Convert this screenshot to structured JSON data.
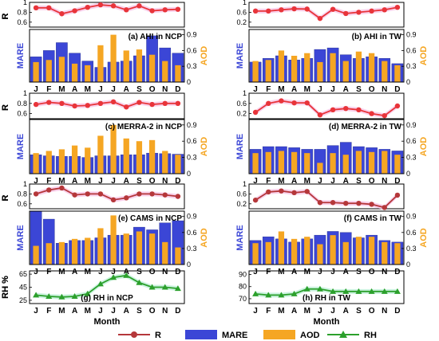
{
  "colors": {
    "r_ncp_tw_top": "#e8343a",
    "r_cams": "#b5373a",
    "rh": "#2ca02c",
    "mare": "#3b46d6",
    "aod": "#f5a623",
    "r_band": "#f7c6e6",
    "rh_band": "#bff0d8"
  },
  "legend": {
    "r": "R",
    "mare": "MARE",
    "aod": "AOD",
    "rh": "RH"
  },
  "chart_data": [
    {
      "type": "line",
      "panel": "AHI NCP R",
      "ylabel": "R",
      "categories": [
        "J",
        "F",
        "M",
        "A",
        "M",
        "J",
        "J",
        "A",
        "S",
        "O",
        "N",
        "D"
      ],
      "yticks": [
        "1",
        "0.8",
        "0.6"
      ],
      "ylim": [
        0.5,
        1.0
      ],
      "series": [
        {
          "name": "R",
          "values": [
            0.89,
            0.89,
            0.77,
            0.83,
            0.9,
            0.95,
            0.93,
            0.85,
            0.93,
            0.83,
            0.85,
            0.86
          ]
        }
      ]
    },
    {
      "type": "bar",
      "panel": "AHI NCP",
      "label": "(a) AHI in NCP",
      "ylabel": "MARE",
      "y2label": "AOD",
      "categories": [
        "J",
        "F",
        "M",
        "A",
        "M",
        "J",
        "J",
        "A",
        "S",
        "O",
        "N",
        "D"
      ],
      "yticks": [
        "0.9",
        "0.6",
        "0.3",
        "0"
      ],
      "ylim": [
        0,
        1.0
      ],
      "series": [
        {
          "name": "MARE",
          "values": [
            0.48,
            0.6,
            0.75,
            0.55,
            0.4,
            0.28,
            0.38,
            0.4,
            0.5,
            0.88,
            0.65,
            0.55
          ]
        },
        {
          "name": "AOD",
          "values": [
            0.38,
            0.42,
            0.48,
            0.35,
            0.32,
            0.7,
            0.9,
            0.6,
            0.62,
            0.52,
            0.4,
            0.32
          ]
        }
      ]
    },
    {
      "type": "line",
      "panel": "AHI TW R",
      "ylabel": "R",
      "categories": [
        "J",
        "F",
        "M",
        "A",
        "M",
        "J",
        "J",
        "A",
        "S",
        "O",
        "N",
        "D"
      ],
      "yticks": [
        "1",
        "0.6",
        "0.2"
      ],
      "ylim": [
        0.0,
        1.0
      ],
      "series": [
        {
          "name": "R",
          "values": [
            0.65,
            0.65,
            0.7,
            0.74,
            0.73,
            0.35,
            0.72,
            0.55,
            0.6,
            0.65,
            0.7,
            0.8
          ]
        }
      ]
    },
    {
      "type": "bar",
      "panel": "AHI TW",
      "label": "(b) AHI in TW",
      "ylabel": "MARE",
      "y2label": "AOD",
      "categories": [
        "J",
        "F",
        "M",
        "A",
        "M",
        "J",
        "J",
        "A",
        "S",
        "O",
        "N",
        "D"
      ],
      "yticks": [
        "0.9",
        "0.6",
        "0.3",
        "0"
      ],
      "ylim": [
        0,
        1.0
      ],
      "series": [
        {
          "name": "MARE",
          "values": [
            0.38,
            0.45,
            0.5,
            0.42,
            0.45,
            0.62,
            0.65,
            0.52,
            0.45,
            0.48,
            0.45,
            0.35
          ]
        },
        {
          "name": "AOD",
          "values": [
            0.4,
            0.42,
            0.6,
            0.5,
            0.55,
            0.38,
            0.55,
            0.4,
            0.58,
            0.55,
            0.4,
            0.32
          ]
        }
      ]
    },
    {
      "type": "line",
      "panel": "MERRA-2 NCP R",
      "ylabel": "R",
      "categories": [
        "J",
        "F",
        "M",
        "A",
        "M",
        "J",
        "J",
        "A",
        "S",
        "O",
        "N",
        "D"
      ],
      "yticks": [
        "1",
        "0.8",
        "0.6"
      ],
      "ylim": [
        0.5,
        1.0
      ],
      "series": [
        {
          "name": "R",
          "values": [
            0.78,
            0.82,
            0.8,
            0.75,
            0.76,
            0.8,
            0.83,
            0.73,
            0.82,
            0.78,
            0.8,
            0.8
          ]
        }
      ]
    },
    {
      "type": "bar",
      "panel": "MERRA-2 NCP",
      "label": "(c) MERRA-2 in NCP",
      "ylabel": "MARE",
      "y2label": "AOD",
      "categories": [
        "J",
        "F",
        "M",
        "A",
        "M",
        "J",
        "J",
        "A",
        "S",
        "O",
        "N",
        "D"
      ],
      "yticks": [
        "0.9",
        "0.6",
        "0.3",
        "0"
      ],
      "ylim": [
        0,
        1.0
      ],
      "series": [
        {
          "name": "MARE",
          "values": [
            0.35,
            0.33,
            0.32,
            0.32,
            0.3,
            0.33,
            0.33,
            0.35,
            0.35,
            0.38,
            0.37,
            0.36
          ]
        },
        {
          "name": "AOD",
          "values": [
            0.38,
            0.42,
            0.45,
            0.52,
            0.48,
            0.7,
            0.9,
            0.65,
            0.6,
            0.62,
            0.42,
            0.35
          ]
        }
      ]
    },
    {
      "type": "line",
      "panel": "MERRA-2 TW R",
      "ylabel": "R",
      "categories": [
        "J",
        "F",
        "M",
        "A",
        "M",
        "J",
        "J",
        "A",
        "S",
        "O",
        "N",
        "D"
      ],
      "yticks": [
        "1",
        "0.6",
        "0.2"
      ],
      "ylim": [
        0.0,
        1.0
      ],
      "series": [
        {
          "name": "R",
          "values": [
            0.25,
            0.6,
            0.7,
            0.62,
            0.62,
            0.15,
            0.35,
            0.4,
            0.35,
            0.2,
            0.12,
            0.5
          ]
        }
      ]
    },
    {
      "type": "bar",
      "panel": "MERRA-2 TW",
      "label": "(d) MERRA-2 in TW",
      "ylabel": "MARE",
      "y2label": "AOD",
      "categories": [
        "J",
        "F",
        "M",
        "A",
        "M",
        "J",
        "J",
        "A",
        "S",
        "O",
        "N",
        "D"
      ],
      "yticks": [
        "0.9",
        "0.6",
        "0.3",
        "0"
      ],
      "ylim": [
        0,
        1.0
      ],
      "series": [
        {
          "name": "MARE",
          "values": [
            0.45,
            0.5,
            0.5,
            0.48,
            0.45,
            0.45,
            0.52,
            0.58,
            0.5,
            0.48,
            0.45,
            0.42
          ]
        },
        {
          "name": "AOD",
          "values": [
            0.38,
            0.4,
            0.42,
            0.4,
            0.38,
            0.2,
            0.38,
            0.35,
            0.42,
            0.4,
            0.42,
            0.35
          ]
        }
      ]
    },
    {
      "type": "line",
      "panel": "CAMS NCP R",
      "ylabel": "R",
      "categories": [
        "J",
        "F",
        "M",
        "A",
        "M",
        "J",
        "J",
        "A",
        "S",
        "O",
        "N",
        "D"
      ],
      "yticks": [
        "1",
        "0.8",
        "0.6"
      ],
      "ylim": [
        0.5,
        1.0
      ],
      "series": [
        {
          "name": "R",
          "values": [
            0.8,
            0.88,
            0.92,
            0.78,
            0.8,
            0.8,
            0.68,
            0.72,
            0.8,
            0.8,
            0.78,
            0.75
          ]
        }
      ]
    },
    {
      "type": "bar",
      "panel": "CAMS NCP",
      "label": "(e) CAMS in NCP",
      "ylabel": "MARE",
      "y2label": "AOD",
      "categories": [
        "J",
        "F",
        "M",
        "A",
        "M",
        "J",
        "J",
        "A",
        "S",
        "O",
        "N",
        "D"
      ],
      "yticks": [
        "0.9",
        "0.6",
        "0.3",
        "0"
      ],
      "ylim": [
        0,
        1.0
      ],
      "series": [
        {
          "name": "MARE",
          "values": [
            1.0,
            0.85,
            0.4,
            0.45,
            0.45,
            0.5,
            0.55,
            0.55,
            0.7,
            0.65,
            0.78,
            0.82
          ]
        },
        {
          "name": "AOD",
          "values": [
            0.35,
            0.4,
            0.42,
            0.48,
            0.5,
            0.68,
            0.92,
            0.58,
            0.62,
            0.58,
            0.42,
            0.32
          ]
        }
      ]
    },
    {
      "type": "line",
      "panel": "CAMS TW R",
      "ylabel": "R",
      "categories": [
        "J",
        "F",
        "M",
        "A",
        "M",
        "J",
        "J",
        "A",
        "S",
        "O",
        "N",
        "D"
      ],
      "yticks": [
        "1",
        "0.6",
        "0.2"
      ],
      "ylim": [
        0.0,
        1.0
      ],
      "series": [
        {
          "name": "R",
          "values": [
            0.35,
            0.68,
            0.72,
            0.65,
            0.7,
            0.25,
            0.25,
            0.22,
            0.22,
            0.18,
            0.05,
            0.55
          ]
        }
      ]
    },
    {
      "type": "bar",
      "panel": "CAMS TW",
      "label": "(f) CAMS in TW",
      "ylabel": "MARE",
      "y2label": "AOD",
      "categories": [
        "J",
        "F",
        "M",
        "A",
        "M",
        "J",
        "J",
        "A",
        "S",
        "O",
        "N",
        "D"
      ],
      "yticks": [
        "0.9",
        "0.6",
        "0.3",
        "0"
      ],
      "ylim": [
        0,
        1.0
      ],
      "series": [
        {
          "name": "MARE",
          "values": [
            0.45,
            0.52,
            0.48,
            0.42,
            0.48,
            0.55,
            0.62,
            0.6,
            0.5,
            0.55,
            0.45,
            0.42
          ]
        },
        {
          "name": "AOD",
          "values": [
            0.4,
            0.42,
            0.62,
            0.48,
            0.52,
            0.38,
            0.55,
            0.42,
            0.52,
            0.52,
            0.42,
            0.4
          ]
        }
      ]
    },
    {
      "type": "line",
      "panel": "RH NCP",
      "label": "(g) RH in NCP",
      "ylabel": "RH %",
      "categories": [
        "J",
        "F",
        "M",
        "A",
        "M",
        "J",
        "J",
        "A",
        "S",
        "O",
        "N",
        "D"
      ],
      "yticks": [
        "65",
        "45",
        "25"
      ],
      "ylim": [
        20,
        70
      ],
      "series": [
        {
          "name": "RH",
          "values": [
            33,
            31,
            30,
            31,
            35,
            50,
            60,
            63,
            52,
            45,
            45,
            43
          ]
        }
      ]
    },
    {
      "type": "line",
      "panel": "RH TW",
      "label": "(h) RH in TW",
      "ylabel": "RH %",
      "categories": [
        "J",
        "F",
        "M",
        "A",
        "M",
        "J",
        "J",
        "A",
        "S",
        "O",
        "N",
        "D"
      ],
      "yticks": [
        "90",
        "80",
        "70"
      ],
      "ylim": [
        66,
        93
      ],
      "series": [
        {
          "name": "RH",
          "values": [
            74,
            73,
            73,
            74,
            78,
            78,
            76,
            76,
            76,
            76,
            76,
            76
          ]
        }
      ]
    }
  ],
  "xlabel": "Month"
}
